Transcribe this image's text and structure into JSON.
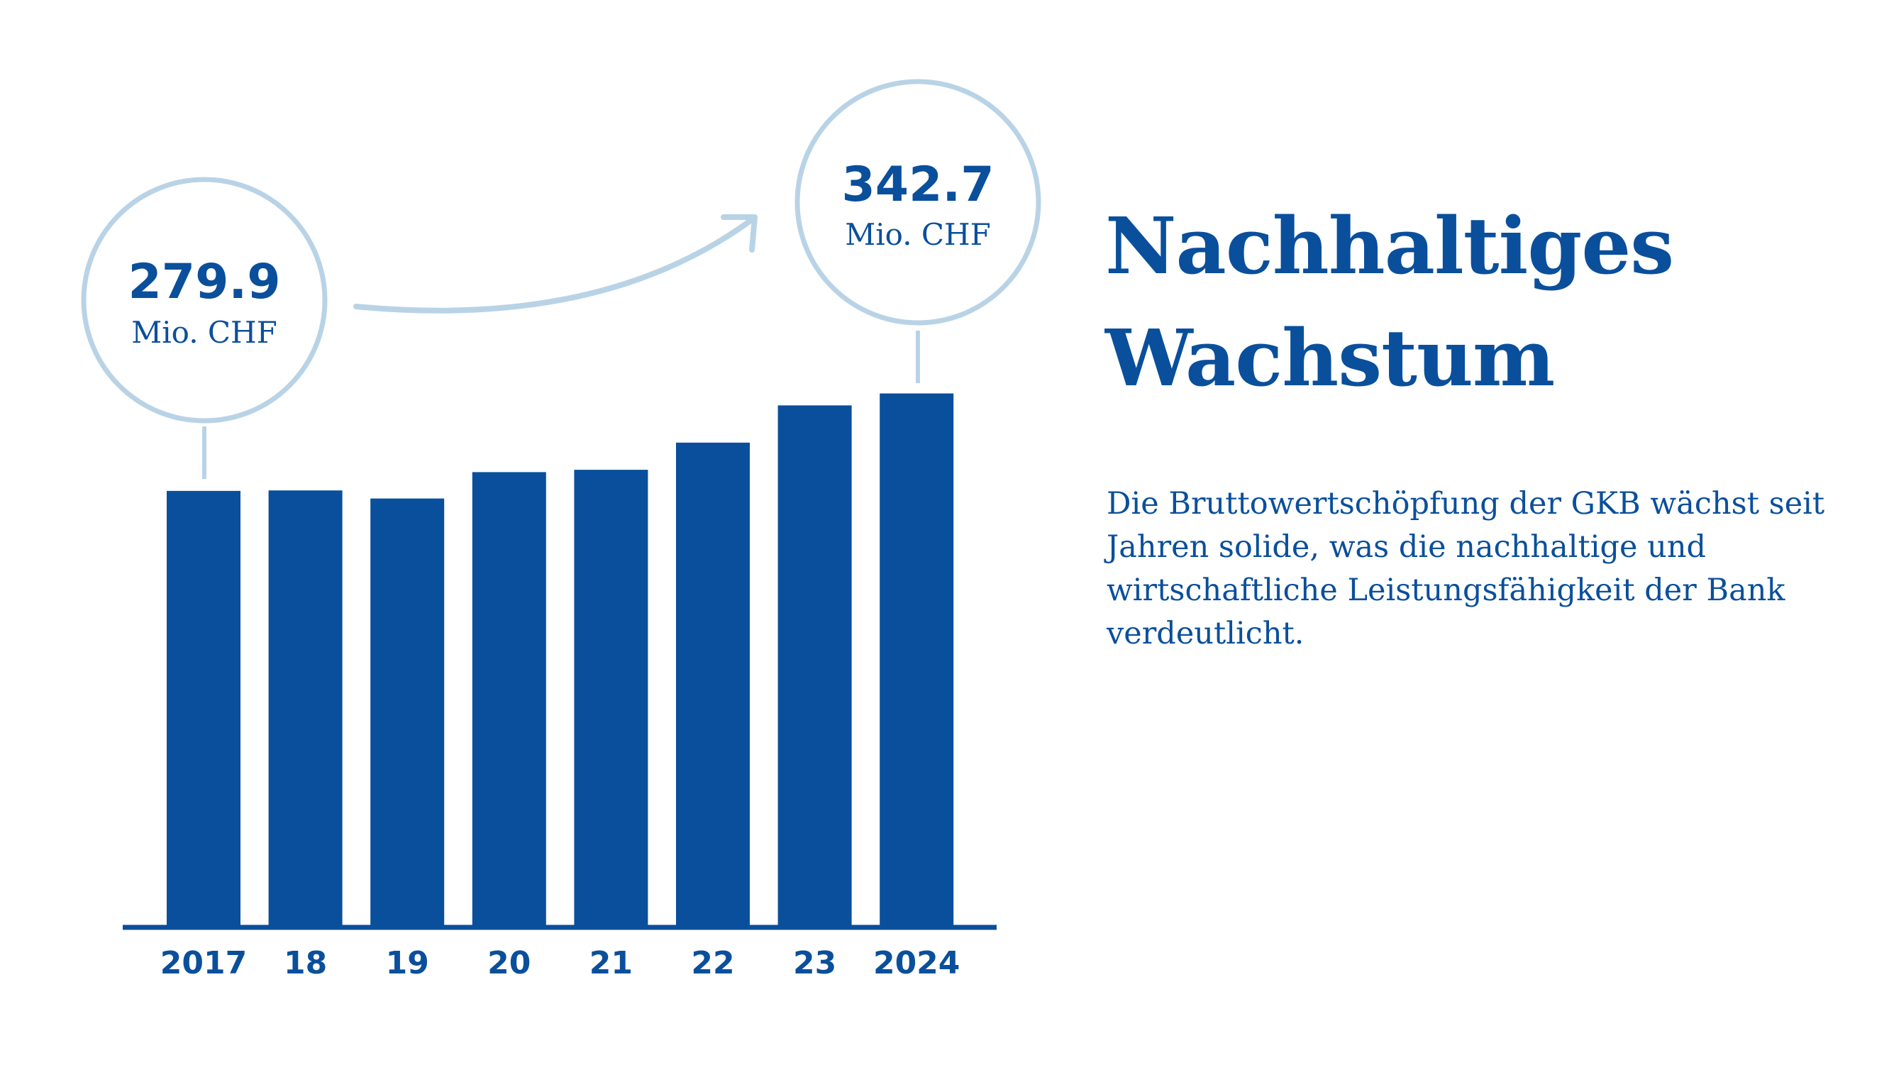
{
  "headline": {
    "line1": "Nachhaltiges",
    "line2": "Wachstum"
  },
  "body": "Die Bruttowertschöpfung der GKB wächst seit Jahren solide, was die nachhaltige und wirtschaftliche Leistungsfähigkeit der Bank verdeutlicht.",
  "colors": {
    "bar": "#0a4f9c",
    "text": "#0a4f9c",
    "accent_light": "#b9d3e6"
  },
  "chart_data": {
    "type": "bar",
    "categories": [
      "2017",
      "18",
      "19",
      "20",
      "21",
      "22",
      "23",
      "2024"
    ],
    "values": [
      279.9,
      280.2,
      275.0,
      292.0,
      293.5,
      311.0,
      335.0,
      342.7
    ],
    "title": "",
    "xlabel": "",
    "ylabel": "",
    "ylim": [
      0,
      350
    ],
    "grid": false,
    "legend": "none",
    "annotations": [
      {
        "category": "2017",
        "value": "279.9",
        "unit": "Mio. CHF"
      },
      {
        "category": "2024",
        "value": "342.7",
        "unit": "Mio. CHF"
      }
    ]
  }
}
